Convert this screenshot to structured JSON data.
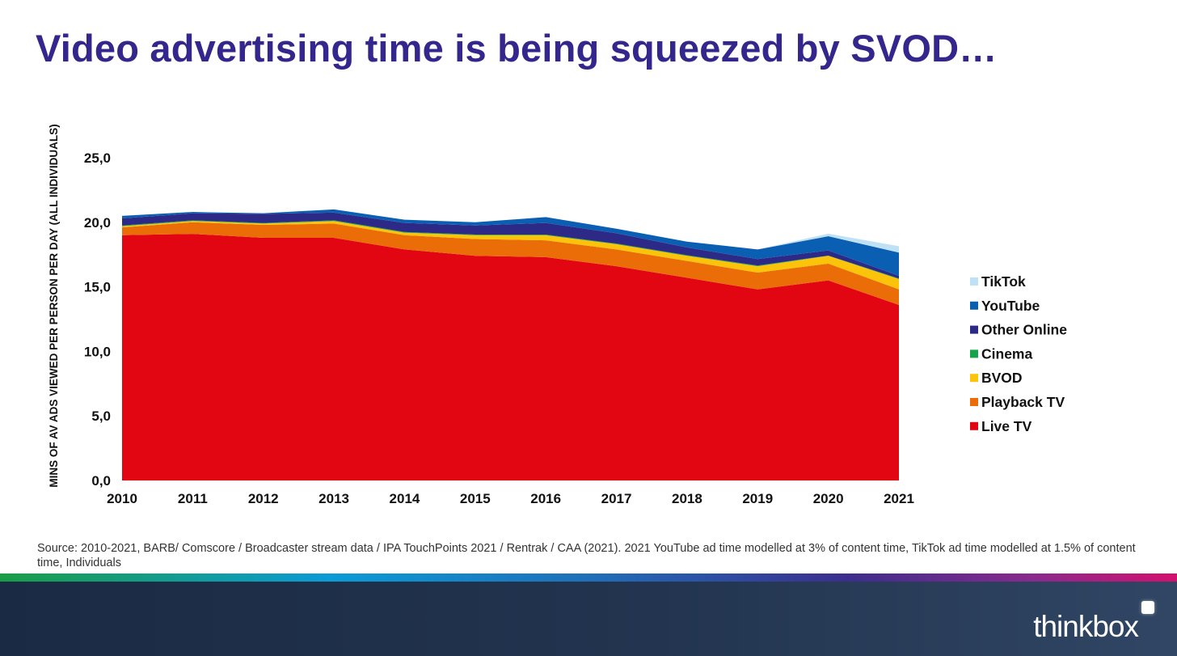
{
  "slide": {
    "title": "Video advertising time is being squeezed by SVOD…",
    "source": "Source: 2010-2021, BARB/ Comscore / Broadcaster stream data / IPA TouchPoints 2021 / Rentrak / CAA (2021). 2021 YouTube ad time modelled at 3% of content time, TikTok ad time modelled at 1.5% of content time, Individuals",
    "brand": "thinkbox"
  },
  "chart_data": {
    "type": "area",
    "stacked": true,
    "ylabel": "MINS OF AV ADS VIEWED  PER PERSON PER DAY (ALL INDIVIDUALS)",
    "xlabel": "",
    "ylim": [
      0,
      25
    ],
    "yticks": [
      "0,0",
      "5,0",
      "10,0",
      "15,0",
      "20,0",
      "25,0"
    ],
    "grid": false,
    "legend_position": "right",
    "categories": [
      "2010",
      "2011",
      "2012",
      "2013",
      "2014",
      "2015",
      "2016",
      "2017",
      "2018",
      "2019",
      "2020",
      "2021"
    ],
    "series": [
      {
        "name": "Live TV",
        "color": "#e20613",
        "values": [
          19.0,
          19.1,
          18.8,
          18.8,
          17.9,
          17.4,
          17.3,
          16.6,
          15.7,
          14.8,
          15.5,
          13.6
        ]
      },
      {
        "name": "Playback TV",
        "color": "#eb6d07",
        "values": [
          0.6,
          0.9,
          1.0,
          1.1,
          1.1,
          1.3,
          1.3,
          1.3,
          1.3,
          1.3,
          1.3,
          1.2
        ]
      },
      {
        "name": "BVOD",
        "color": "#fbc30a",
        "values": [
          0.1,
          0.1,
          0.1,
          0.2,
          0.2,
          0.3,
          0.4,
          0.4,
          0.4,
          0.5,
          0.6,
          0.8
        ]
      },
      {
        "name": "Cinema",
        "color": "#16a34a",
        "values": [
          0.05,
          0.05,
          0.05,
          0.05,
          0.05,
          0.05,
          0.05,
          0.05,
          0.05,
          0.05,
          0.02,
          0.05
        ]
      },
      {
        "name": "Other Online",
        "color": "#2d2a87",
        "values": [
          0.55,
          0.55,
          0.7,
          0.6,
          0.7,
          0.7,
          0.9,
          0.8,
          0.6,
          0.5,
          0.4,
          0.2
        ]
      },
      {
        "name": "YouTube",
        "color": "#0b5fb3",
        "values": [
          0.2,
          0.1,
          0.05,
          0.25,
          0.25,
          0.25,
          0.45,
          0.35,
          0.45,
          0.75,
          1.1,
          1.8
        ]
      },
      {
        "name": "TikTok",
        "color": "#bfe1f6",
        "values": [
          0,
          0,
          0,
          0,
          0,
          0,
          0,
          0,
          0,
          0,
          0.2,
          0.5
        ]
      }
    ]
  }
}
